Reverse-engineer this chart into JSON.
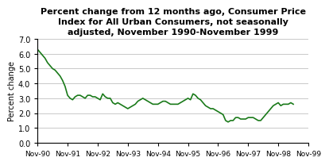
{
  "title": "Percent change from 12 months ago, Consumer Price\nIndex for All Urban Consumers, not seasonally\nadjusted, November 1990-November 1999",
  "ylabel": "Percent change",
  "ylim": [
    0.0,
    7.0
  ],
  "yticks": [
    0.0,
    1.0,
    2.0,
    3.0,
    4.0,
    5.0,
    6.0,
    7.0
  ],
  "line_color": "#1a7a1a",
  "line_width": 1.2,
  "background_color": "#ffffff",
  "xtick_labels": [
    "Nov-90",
    "Nov-91",
    "Nov-92",
    "Nov-93",
    "Nov-94",
    "Nov-95",
    "Nov-96",
    "Nov-97",
    "Nov-98",
    "Nov-99"
  ],
  "values": [
    6.3,
    6.1,
    5.9,
    5.7,
    5.4,
    5.2,
    5.0,
    4.9,
    4.7,
    4.5,
    4.2,
    3.8,
    3.2,
    3.0,
    2.9,
    3.1,
    3.2,
    3.2,
    3.1,
    3.0,
    3.2,
    3.2,
    3.1,
    3.1,
    3.0,
    2.9,
    3.3,
    3.1,
    3.0,
    3.0,
    2.7,
    2.6,
    2.7,
    2.6,
    2.5,
    2.4,
    2.3,
    2.4,
    2.5,
    2.6,
    2.8,
    2.9,
    3.0,
    2.9,
    2.8,
    2.7,
    2.6,
    2.6,
    2.6,
    2.7,
    2.8,
    2.8,
    2.7,
    2.6,
    2.6,
    2.6,
    2.6,
    2.7,
    2.8,
    2.9,
    3.0,
    2.9,
    3.3,
    3.2,
    3.0,
    2.9,
    2.7,
    2.5,
    2.4,
    2.3,
    2.3,
    2.2,
    2.1,
    2.0,
    1.9,
    1.5,
    1.4,
    1.5,
    1.5,
    1.7,
    1.7,
    1.6,
    1.6,
    1.6,
    1.7,
    1.7,
    1.7,
    1.6,
    1.5,
    1.5,
    1.7,
    1.9,
    2.1,
    2.3,
    2.5,
    2.6,
    2.7,
    2.5,
    2.6,
    2.6,
    2.6,
    2.7,
    2.6
  ]
}
